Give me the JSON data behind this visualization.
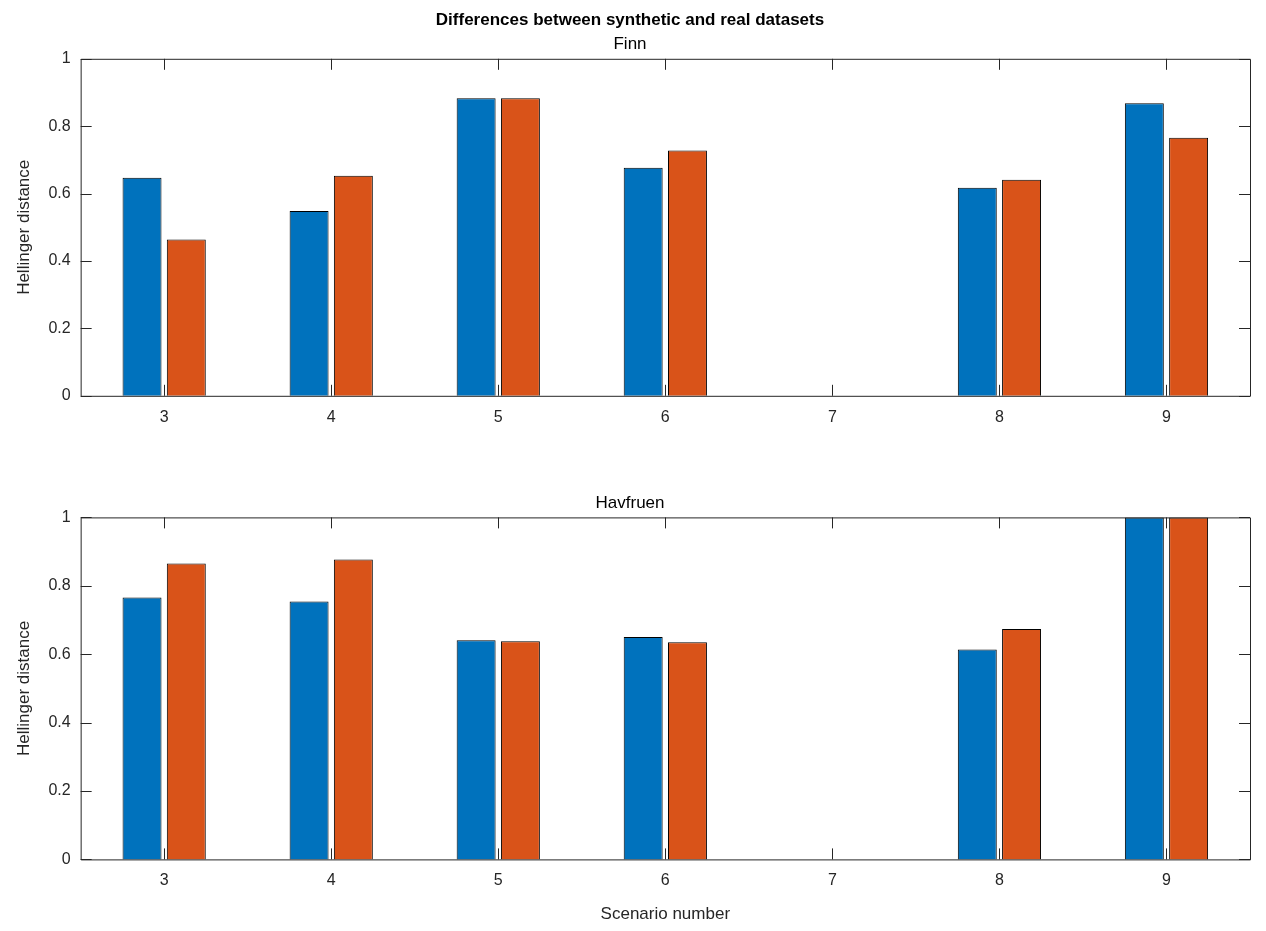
{
  "chart_data": [
    {
      "type": "bar",
      "title": "Differences between synthetic and real datasets",
      "subtitle": "Finn",
      "ylabel": "Hellinger distance",
      "categories": [
        "3",
        "4",
        "5",
        "6",
        "7",
        "8",
        "9"
      ],
      "series": [
        {
          "color": "#0072bd",
          "values": [
            0.647,
            0.548,
            0.883,
            0.677,
            null,
            0.617,
            0.868
          ]
        },
        {
          "color": "#d95319",
          "values": [
            0.464,
            0.653,
            0.883,
            0.728,
            null,
            0.641,
            0.766
          ]
        }
      ],
      "ylim": [
        0,
        1
      ],
      "yticks": [
        0,
        0.2,
        0.4,
        0.6,
        0.8,
        1
      ],
      "grid": false,
      "legend": false
    },
    {
      "type": "bar",
      "title": "Havfruen",
      "xlabel": "Scenario number",
      "ylabel": "Hellinger distance",
      "categories": [
        "3",
        "4",
        "5",
        "6",
        "7",
        "8",
        "9"
      ],
      "series": [
        {
          "color": "#0072bd",
          "values": [
            0.766,
            0.754,
            0.641,
            0.65,
            null,
            0.614,
            1
          ]
        },
        {
          "color": "#d95319",
          "values": [
            0.865,
            0.877,
            0.638,
            0.635,
            null,
            0.674,
            1
          ]
        }
      ],
      "ylim": [
        0,
        1
      ],
      "yticks": [
        0,
        0.2,
        0.4,
        0.6,
        0.8,
        1
      ],
      "grid": false,
      "legend": false
    }
  ]
}
